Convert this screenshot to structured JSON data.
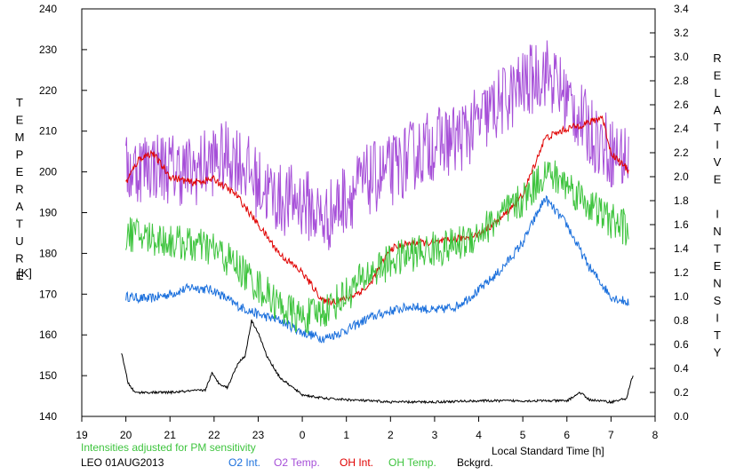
{
  "chart_data": {
    "type": "line",
    "station": "LEO 01AUG2013",
    "note": "Intensities adjusted for PM sensitivity",
    "xlabel": "Local Standard Time [h]",
    "ylabel_left": "TEMPERATURE",
    "ylabel_left_unit": "[K]",
    "ylabel_right": "RELATIVE INTENSITY",
    "x_range": [
      19,
      32
    ],
    "x_ticks": [
      "19",
      "20",
      "21",
      "22",
      "23",
      "0",
      "1",
      "2",
      "3",
      "4",
      "5",
      "6",
      "7",
      "8"
    ],
    "y_left_range": [
      140,
      240
    ],
    "y_left_ticks": [
      "140",
      "150",
      "160",
      "170",
      "180",
      "190",
      "200",
      "210",
      "220",
      "230",
      "240"
    ],
    "y_right_range": [
      0,
      3.4
    ],
    "y_right_ticks": [
      "0.0",
      "0.2",
      "0.4",
      "0.6",
      "0.8",
      "1.0",
      "1.2",
      "1.4",
      "1.6",
      "1.8",
      "2.0",
      "2.2",
      "2.4",
      "2.6",
      "2.8",
      "3.0",
      "3.2",
      "3.4"
    ],
    "series": [
      {
        "name": "O2 Int.",
        "color": "#1a6fdc",
        "axis": "right",
        "noise": 0.04,
        "x": [
          20.0,
          20.5,
          21.0,
          21.5,
          22.0,
          22.5,
          23.0,
          23.5,
          24.0,
          24.5,
          25.0,
          25.5,
          26.0,
          26.5,
          27.0,
          27.5,
          28.0,
          28.5,
          29.0,
          29.5,
          30.0,
          30.25,
          30.5,
          31.0,
          31.4
        ],
        "y": [
          1.0,
          0.98,
          1.02,
          1.08,
          1.05,
          0.93,
          0.85,
          0.8,
          0.7,
          0.65,
          0.72,
          0.82,
          0.88,
          0.92,
          0.88,
          0.92,
          1.05,
          1.22,
          1.45,
          1.82,
          1.6,
          1.42,
          1.25,
          1.0,
          0.95
        ]
      },
      {
        "name": "O2 Temp.",
        "color": "#a64fd8",
        "axis": "left",
        "noise": 9,
        "x": [
          20.0,
          20.5,
          21.0,
          21.5,
          22.0,
          22.5,
          23.0,
          23.5,
          24.0,
          24.5,
          25.0,
          25.5,
          26.0,
          26.5,
          27.0,
          27.5,
          28.0,
          28.5,
          29.0,
          29.5,
          30.0,
          30.5,
          31.0,
          31.4
        ],
        "y": [
          200,
          202,
          201,
          200,
          203,
          204,
          197,
          193,
          193,
          188,
          194,
          198,
          200,
          204,
          207,
          208,
          212,
          217,
          221,
          225,
          218,
          210,
          205,
          203
        ]
      },
      {
        "name": "OH Int.",
        "color": "#e00000",
        "axis": "right",
        "noise": 0.03,
        "x": [
          20.0,
          20.3,
          20.6,
          21.0,
          21.5,
          22.0,
          22.5,
          23.0,
          23.5,
          24.0,
          24.5,
          25.0,
          25.5,
          26.0,
          26.5,
          27.0,
          27.5,
          28.0,
          28.5,
          29.0,
          29.5,
          30.0,
          30.5,
          30.8,
          31.0,
          31.4
        ],
        "y": [
          1.95,
          2.15,
          2.2,
          2.0,
          1.95,
          1.98,
          1.85,
          1.6,
          1.35,
          1.2,
          0.95,
          0.98,
          1.08,
          1.4,
          1.45,
          1.45,
          1.48,
          1.52,
          1.65,
          1.85,
          2.32,
          2.4,
          2.45,
          2.5,
          2.2,
          2.05
        ]
      },
      {
        "name": "OH Temp.",
        "color": "#3ec43e",
        "axis": "left",
        "noise": 4.5,
        "x": [
          20.0,
          20.5,
          21.0,
          21.5,
          22.0,
          22.5,
          23.0,
          23.5,
          24.0,
          24.5,
          25.0,
          25.5,
          26.0,
          26.5,
          27.0,
          27.5,
          28.0,
          28.5,
          29.0,
          29.5,
          30.0,
          30.5,
          31.0,
          31.4
        ],
        "y": [
          185,
          184,
          183,
          182,
          181,
          177,
          172,
          167,
          164,
          166,
          170,
          175,
          178,
          180,
          181,
          182,
          185,
          189,
          193,
          200,
          197,
          192,
          188,
          186
        ]
      },
      {
        "name": "Bckgrd.",
        "color": "#000000",
        "axis": "right",
        "noise": 0.01,
        "x": [
          19.9,
          20.05,
          20.2,
          21.0,
          21.8,
          21.95,
          22.1,
          22.3,
          22.55,
          22.7,
          22.85,
          23.0,
          23.2,
          23.5,
          24.0,
          24.5,
          25.0,
          26.0,
          27.0,
          28.0,
          29.0,
          30.0,
          30.3,
          30.5,
          31.0,
          31.35,
          31.5
        ],
        "y": [
          0.53,
          0.28,
          0.2,
          0.2,
          0.22,
          0.36,
          0.28,
          0.24,
          0.45,
          0.5,
          0.8,
          0.7,
          0.5,
          0.32,
          0.18,
          0.15,
          0.14,
          0.12,
          0.12,
          0.13,
          0.13,
          0.13,
          0.2,
          0.14,
          0.12,
          0.15,
          0.35
        ]
      }
    ]
  }
}
